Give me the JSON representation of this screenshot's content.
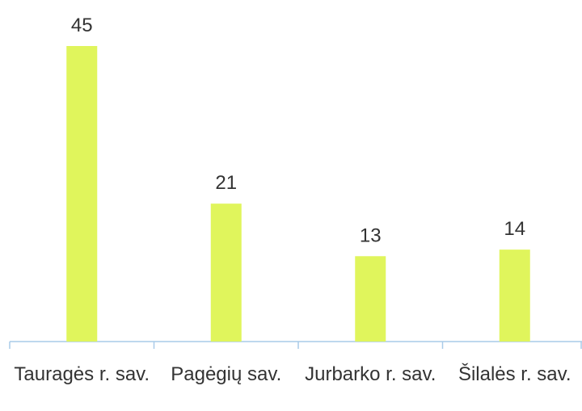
{
  "chart_data": {
    "type": "bar",
    "categories": [
      "Tauragės r. sav.",
      "Pagėgių sav.",
      "Jurbarko r. sav.",
      "Šilalės r. sav."
    ],
    "values": [
      45,
      21,
      13,
      14
    ],
    "color": "#e0f55c"
  }
}
